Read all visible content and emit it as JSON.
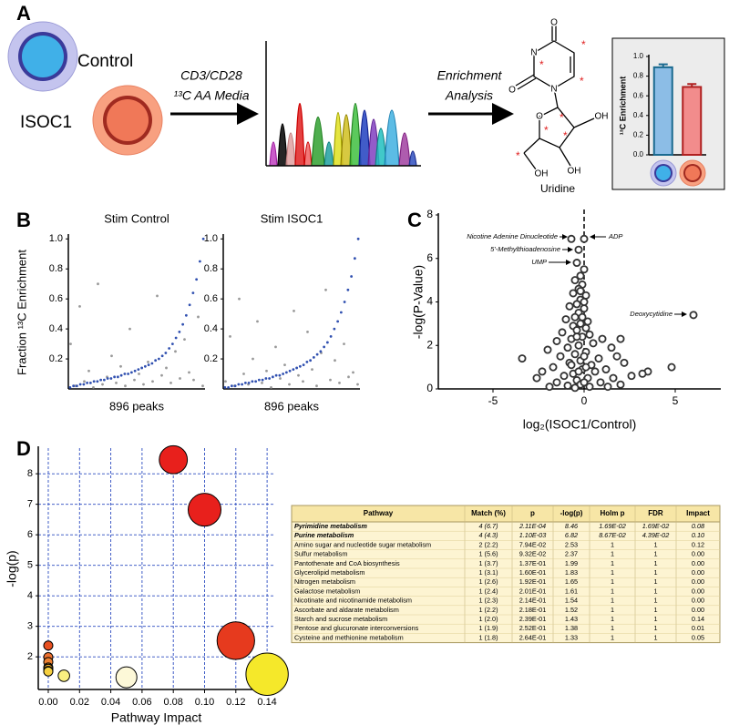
{
  "panels": [
    "A",
    "B",
    "C",
    "D"
  ],
  "diagram": {
    "control": "Control",
    "isoc1": "ISOC1",
    "media": [
      "CD3/CD28",
      "¹³C AA Media"
    ],
    "analysis": [
      "Enrichment",
      "Analysis"
    ],
    "molecule": "Uridine",
    "atoms": [
      "O",
      "N",
      "N",
      "O",
      "O",
      "OH",
      "OH",
      "OH"
    ],
    "marker": "*"
  },
  "chart_data": [
    {
      "type": "bar",
      "ylabel": "¹³C Enrichment",
      "categories": [
        null,
        null
      ],
      "values": [
        0.89,
        0.69
      ],
      "errors": [
        0.03,
        0.03
      ],
      "colors": [
        "#8cbde6",
        "#f28c8c"
      ],
      "edge_colors": [
        "#1a6a90",
        "#b02020"
      ],
      "ylim": [
        0,
        1
      ],
      "yticks": [
        {
          "value": 0,
          "label": "0.0"
        },
        0.2,
        0.4,
        0.6,
        0.8,
        {
          "value": 1,
          "label": "1.0"
        }
      ]
    },
    {
      "type": "scatter",
      "title": "Stim Control",
      "ylabel": "Fraction ¹³C Enrichment",
      "xlabel": "896 peaks",
      "ylim": [
        0,
        1.02
      ],
      "yticks": [
        0.2,
        0.4,
        0.6,
        0.8,
        {
          "value": 1,
          "label": "1.0"
        }
      ],
      "series": [
        {
          "color": "#999999",
          "values": [
            0.3,
            0.02,
            0.55,
            0.05,
            0.12,
            0.01,
            0.7,
            0.03,
            0.08,
            0.22,
            0.04,
            0.15,
            0.02,
            0.4,
            0.06,
            0.1,
            0.03,
            0.18,
            0.05,
            0.62,
            0.09,
            0.14,
            0.04,
            0.25,
            0.07,
            0.33,
            0.11,
            0.06,
            0.48,
            0.02
          ]
        },
        {
          "color": "#3050b0",
          "values": [
            0.01,
            0.02,
            0.02,
            0.03,
            0.03,
            0.04,
            0.04,
            0.05,
            0.05,
            0.06,
            0.06,
            0.07,
            0.07,
            0.08,
            0.08,
            0.09,
            0.1,
            0.1,
            0.11,
            0.12,
            0.13,
            0.14,
            0.15,
            0.16,
            0.17,
            0.19,
            0.2,
            0.22,
            0.24,
            0.27,
            0.3,
            0.34,
            0.38,
            0.43,
            0.49,
            0.56,
            0.64,
            0.73,
            0.85,
            1.0
          ]
        }
      ]
    },
    {
      "type": "scatter",
      "title": "Stim ISOC1",
      "xlabel": "896 peaks",
      "ylim": [
        0,
        1.02
      ],
      "yticks": [
        0.2,
        0.4,
        0.6,
        0.8,
        {
          "value": 1,
          "label": "1.0"
        }
      ],
      "series": [
        {
          "color": "#999999",
          "values": [
            0.05,
            0.35,
            0.02,
            0.6,
            0.1,
            0.03,
            0.2,
            0.45,
            0.04,
            0.12,
            0.01,
            0.28,
            0.07,
            0.16,
            0.03,
            0.52,
            0.09,
            0.05,
            0.38,
            0.13,
            0.02,
            0.24,
            0.66,
            0.06,
            0.19,
            0.04,
            0.3,
            0.08,
            0.11,
            0.03
          ]
        },
        {
          "color": "#3050b0",
          "values": [
            0.01,
            0.01,
            0.02,
            0.02,
            0.03,
            0.03,
            0.04,
            0.04,
            0.05,
            0.05,
            0.06,
            0.06,
            0.07,
            0.07,
            0.08,
            0.09,
            0.09,
            0.1,
            0.11,
            0.12,
            0.13,
            0.14,
            0.15,
            0.16,
            0.18,
            0.19,
            0.21,
            0.23,
            0.25,
            0.28,
            0.31,
            0.35,
            0.4,
            0.45,
            0.51,
            0.58,
            0.66,
            0.75,
            0.87,
            1.0
          ]
        }
      ]
    },
    {
      "type": "scatter",
      "xlabel": "log₂(ISOC1/Control)",
      "ylabel": "-log(P-Value)",
      "xlim": [
        -8,
        7.5
      ],
      "xticks": [
        -5,
        0,
        5
      ],
      "ylim": [
        0,
        8
      ],
      "yticks": [
        0,
        2,
        4,
        6,
        8
      ],
      "vline": 0,
      "annotations": [
        "Nicotine Adenine Dinucleotide",
        "ADP",
        "5'-Methylthioadenosine",
        "UMP",
        "Deoxycytidine"
      ],
      "series": [
        {
          "color": "#ffffff",
          "edge_color": "#333333",
          "x": [
            -0.7,
            0,
            -0.3,
            -0.4,
            6.0,
            -0.2,
            -0.5,
            -0.1,
            -0.3,
            -0.6,
            0.1,
            -0.2,
            -0.4,
            -0.8,
            0.0,
            -0.3,
            -0.5,
            -1.0,
            0.2,
            -0.2,
            -0.6,
            -0.4,
            -1.2,
            0.3,
            -0.1,
            -0.7,
            1.0,
            -1.5,
            0.5,
            -0.3,
            -0.9,
            1.5,
            -2.0,
            0.1,
            -0.5,
            2.0,
            -1.3,
            0.8,
            -3.4,
            -0.2,
            1.8,
            -0.8,
            0.4,
            -1.7,
            2.2,
            -0.1,
            1.2,
            -2.3,
            0.6,
            -0.6,
            4.8,
            3.5,
            3.2,
            2.6,
            -1.1,
            0.2,
            -2.6,
            1.6,
            -0.4,
            0.9,
            -1.5,
            -0.2,
            2.0,
            -0.9,
            0.3,
            -0.5,
            1.3,
            -1.9,
            0.0,
            -0.3,
            0.1,
            -0.7,
            0.0,
            -0.4,
            0.1,
            -0.1,
            0.0,
            -0.2,
            0.0
          ],
          "values": [
            6.9,
            6.9,
            6.4,
            5.8,
            3.4,
            5.2,
            5.0,
            4.8,
            4.6,
            4.4,
            4.3,
            4.1,
            3.9,
            3.8,
            3.7,
            3.5,
            3.3,
            3.2,
            3.1,
            3.0,
            2.9,
            2.7,
            2.6,
            2.5,
            2.4,
            2.3,
            2.3,
            2.2,
            2.1,
            2.0,
            1.9,
            1.9,
            1.8,
            1.7,
            1.6,
            2.3,
            1.5,
            1.4,
            1.4,
            1.3,
            1.5,
            1.2,
            1.1,
            1.0,
            1.2,
            0.9,
            0.9,
            0.8,
            0.8,
            0.7,
            1.0,
            0.8,
            0.7,
            0.6,
            0.6,
            0.5,
            0.5,
            0.5,
            0.4,
            0.3,
            0.3,
            0.2,
            0.2,
            0.15,
            0.1,
            0.05,
            0.1,
            0.1,
            0.3,
            0.8,
            1.0,
            1.1,
            1.5,
            2.4,
            2.8,
            3.3,
            4.0,
            4.5,
            5.5
          ]
        }
      ]
    },
    {
      "type": "bubble",
      "xlabel": "Pathway Impact",
      "ylabel": "-log(p)",
      "grid": true,
      "xlim": [
        -0.0064,
        0.1446
      ],
      "xticks": [
        {
          "value": 0,
          "label": "0.00"
        },
        0.02,
        0.04,
        0.06,
        0.08,
        {
          "value": 0.1,
          "label": "0.10"
        },
        0.12,
        0.14
      ],
      "ylim": [
        0.93,
        8.84
      ],
      "yticks": [
        2,
        3,
        4,
        5,
        6,
        7,
        8
      ],
      "x": [
        0.08,
        0.1,
        0.12,
        0.0,
        0.0,
        0.0,
        0.0,
        0.0,
        0.0,
        0.0,
        0.14,
        0.01,
        0.05
      ],
      "values": [
        8.46,
        6.82,
        2.53,
        2.37,
        1.99,
        1.83,
        1.65,
        1.61,
        1.54,
        1.52,
        1.43,
        1.38,
        1.33
      ],
      "colors": [
        "#e8201c",
        "#e8201c",
        "#e63a1e",
        "#e85020",
        "#ec7030",
        "#ee8030",
        "#f0a030",
        "#f2b030",
        "#f4c040",
        "#f6d040",
        "#f5e82a",
        "#faf080",
        "#fdf8d8"
      ]
    }
  ],
  "table": {
    "columns": [
      "Pathway",
      "Match (%)",
      "p",
      "-log(p)",
      "Holm p",
      "FDR",
      "Impact"
    ],
    "rows": [
      [
        "Pyrimidine metabolism",
        "4 (6.7)",
        "2.11E-04",
        "8.46",
        "1.69E-02",
        "1.69E-02",
        "0.08"
      ],
      [
        "Purine metabolism",
        "4 (4.3)",
        "1.10E-03",
        "6.82",
        "8.67E-02",
        "4.39E-02",
        "0.10"
      ],
      [
        "Amino sugar and nucleotide sugar metabolism",
        "2 (2.2)",
        "7.94E-02",
        "2.53",
        "1",
        "1",
        "0.12"
      ],
      [
        "Sulfur metabolism",
        "1 (5.6)",
        "9.32E-02",
        "2.37",
        "1",
        "1",
        "0.00"
      ],
      [
        "Pantothenate and CoA biosynthesis",
        "1 (3.7)",
        "1.37E-01",
        "1.99",
        "1",
        "1",
        "0.00"
      ],
      [
        "Glycerolipid metabolism",
        "1 (3.1)",
        "1.60E-01",
        "1.83",
        "1",
        "1",
        "0.00"
      ],
      [
        "Nitrogen metabolism",
        "1 (2.6)",
        "1.92E-01",
        "1.65",
        "1",
        "1",
        "0.00"
      ],
      [
        "Galactose metabolism",
        "1 (2.4)",
        "2.01E-01",
        "1.61",
        "1",
        "1",
        "0.00"
      ],
      [
        "Nicotinate and nicotinamide metabolism",
        "1 (2.3)",
        "2.14E-01",
        "1.54",
        "1",
        "1",
        "0.00"
      ],
      [
        "Ascorbate and aldarate metabolism",
        "1 (2.2)",
        "2.18E-01",
        "1.52",
        "1",
        "1",
        "0.00"
      ],
      [
        "Starch and sucrose metabolism",
        "1 (2.0)",
        "2.39E-01",
        "1.43",
        "1",
        "1",
        "0.14"
      ],
      [
        "Pentose and glucuronate interconversions",
        "1 (1.9)",
        "2.52E-01",
        "1.38",
        "1",
        "1",
        "0.01"
      ],
      [
        "Cysteine and methionine metabolism",
        "1 (1.8)",
        "2.64E-01",
        "1.33",
        "1",
        "1",
        "0.05"
      ]
    ]
  }
}
